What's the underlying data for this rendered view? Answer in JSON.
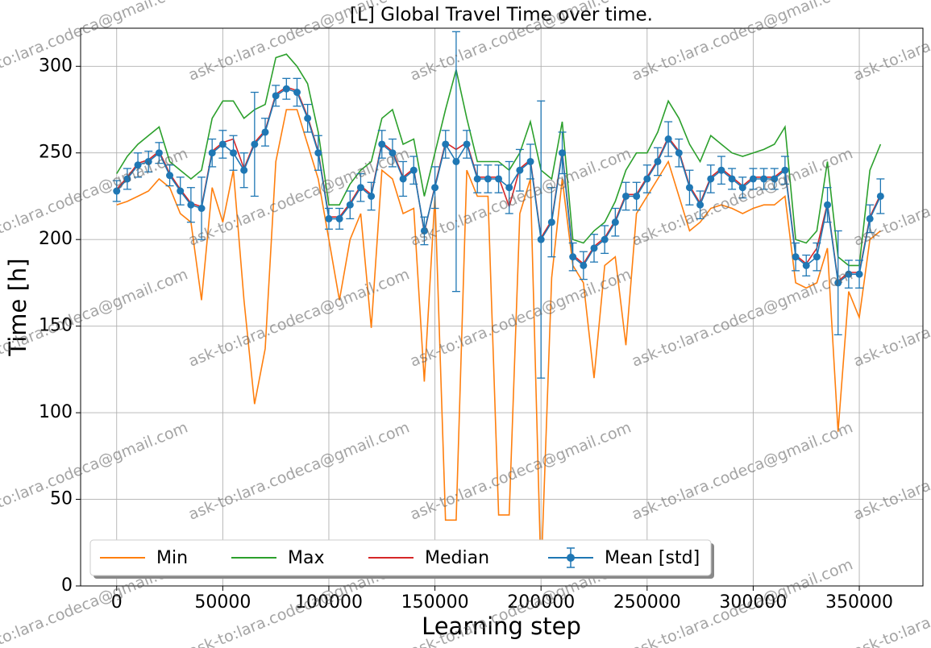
{
  "chart_data": {
    "type": "line",
    "title": "[L] Global Travel Time over time.",
    "xlabel": "Learning step",
    "ylabel": "Time [h]",
    "watermark": "ask-to:lara.codeca@gmail.com",
    "x": [
      0,
      5000,
      10000,
      15000,
      20000,
      25000,
      30000,
      35000,
      40000,
      45000,
      50000,
      55000,
      60000,
      65000,
      70000,
      75000,
      80000,
      85000,
      90000,
      95000,
      100000,
      105000,
      110000,
      115000,
      120000,
      125000,
      130000,
      135000,
      140000,
      145000,
      150000,
      155000,
      160000,
      165000,
      170000,
      175000,
      180000,
      185000,
      190000,
      195000,
      200000,
      205000,
      210000,
      215000,
      220000,
      225000,
      230000,
      235000,
      240000,
      245000,
      250000,
      255000,
      260000,
      265000,
      270000,
      275000,
      280000,
      285000,
      290000,
      295000,
      300000,
      305000,
      310000,
      315000,
      320000,
      325000,
      330000,
      335000,
      340000,
      345000,
      350000,
      355000,
      360000
    ],
    "series": [
      {
        "name": "Min",
        "color": "#ff7f0e",
        "values": [
          220,
          222,
          225,
          228,
          235,
          230,
          215,
          210,
          165,
          230,
          210,
          240,
          165,
          105,
          137,
          245,
          275,
          275,
          255,
          235,
          200,
          165,
          200,
          215,
          149,
          240,
          235,
          215,
          218,
          118,
          225,
          38,
          38,
          240,
          225,
          225,
          41,
          41,
          215,
          235,
          5,
          178,
          235,
          185,
          175,
          120,
          185,
          190,
          139,
          215,
          225,
          235,
          245,
          225,
          205,
          210,
          218,
          220,
          218,
          215,
          218,
          220,
          220,
          225,
          175,
          172,
          175,
          195,
          89,
          170,
          155,
          200,
          205
        ]
      },
      {
        "name": "Max",
        "color": "#2ca02c",
        "values": [
          238,
          248,
          255,
          260,
          265,
          245,
          240,
          235,
          240,
          270,
          280,
          280,
          270,
          275,
          278,
          305,
          307,
          300,
          290,
          262,
          220,
          220,
          232,
          240,
          245,
          270,
          275,
          255,
          258,
          225,
          250,
          275,
          298,
          270,
          245,
          245,
          245,
          240,
          250,
          268,
          240,
          235,
          268,
          200,
          198,
          205,
          210,
          222,
          240,
          250,
          250,
          262,
          280,
          270,
          255,
          245,
          260,
          255,
          250,
          248,
          250,
          252,
          255,
          265,
          200,
          198,
          205,
          245,
          190,
          185,
          185,
          240,
          255
        ]
      },
      {
        "name": "Median",
        "color": "#d62728",
        "values": [
          229,
          236,
          244,
          246,
          251,
          238,
          229,
          221,
          219,
          251,
          256,
          258,
          241,
          256,
          263,
          284,
          288,
          286,
          271,
          251,
          213,
          213,
          221,
          231,
          226,
          256,
          251,
          236,
          241,
          204,
          231,
          256,
          252,
          256,
          236,
          236,
          236,
          219,
          241,
          246,
          201,
          211,
          251,
          191,
          186,
          196,
          201,
          211,
          226,
          226,
          236,
          246,
          259,
          251,
          231,
          221,
          236,
          241,
          236,
          231,
          236,
          236,
          236,
          241,
          191,
          186,
          195,
          221,
          176,
          181,
          181,
          213,
          226
        ]
      },
      {
        "name": "Mean [std]",
        "color": "#1f77b4",
        "errorbars": true,
        "values": [
          228,
          235,
          243,
          245,
          250,
          237,
          228,
          220,
          218,
          250,
          255,
          250,
          240,
          255,
          262,
          283,
          287,
          285,
          270,
          250,
          212,
          212,
          220,
          230,
          225,
          255,
          250,
          235,
          240,
          205,
          230,
          255,
          245,
          255,
          235,
          235,
          235,
          230,
          240,
          245,
          200,
          210,
          250,
          190,
          185,
          195,
          200,
          210,
          225,
          225,
          235,
          245,
          258,
          250,
          230,
          220,
          235,
          240,
          235,
          230,
          235,
          235,
          235,
          240,
          190,
          185,
          190,
          220,
          175,
          180,
          180,
          212,
          225
        ],
        "errors": [
          6,
          6,
          7,
          6,
          6,
          6,
          8,
          10,
          18,
          8,
          8,
          10,
          10,
          30,
          8,
          6,
          6,
          8,
          8,
          10,
          6,
          6,
          8,
          8,
          8,
          8,
          8,
          10,
          8,
          8,
          12,
          8,
          75,
          8,
          8,
          8,
          8,
          15,
          12,
          10,
          80,
          20,
          12,
          8,
          8,
          8,
          8,
          8,
          8,
          8,
          8,
          8,
          10,
          8,
          10,
          8,
          8,
          8,
          6,
          6,
          6,
          6,
          6,
          8,
          8,
          6,
          8,
          10,
          30,
          8,
          8,
          8,
          10
        ]
      }
    ],
    "xlim": [
      -17000,
      380000
    ],
    "ylim": [
      0,
      322
    ],
    "xticks": [
      0,
      50000,
      100000,
      150000,
      200000,
      250000,
      300000,
      350000
    ],
    "yticks": [
      0,
      50,
      100,
      150,
      200,
      250,
      300
    ],
    "grid": true,
    "legend": "lower left"
  }
}
